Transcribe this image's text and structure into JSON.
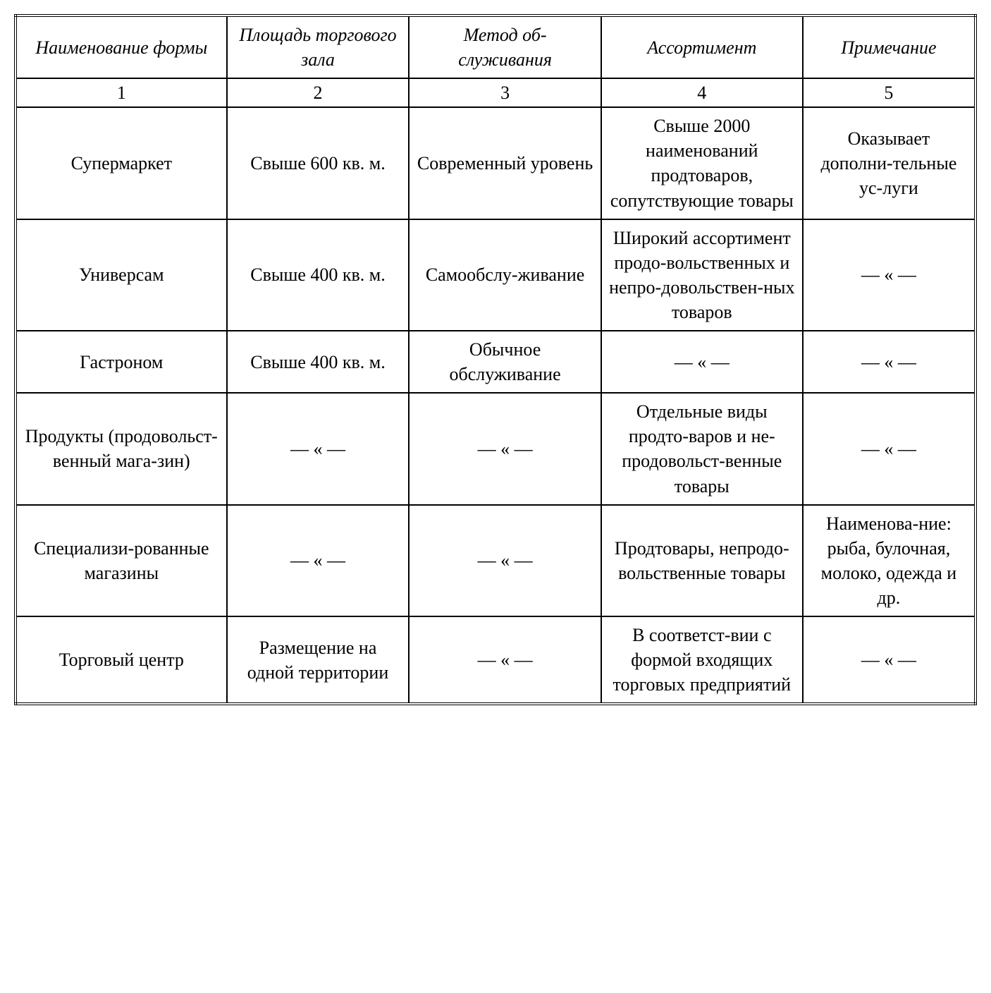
{
  "table": {
    "type": "table",
    "background_color": "#ffffff",
    "text_color": "#000000",
    "border_color": "#000000",
    "border_width": 2,
    "outer_border_style": "double",
    "font_family": "Times New Roman",
    "header_font_style": "italic",
    "cell_font_size_pt": 20,
    "columns": [
      {
        "label": "Наименование формы",
        "number": "1",
        "width_pct": 22
      },
      {
        "label": "Площадь торгового зала",
        "number": "2",
        "width_pct": 19
      },
      {
        "label": "Метод об-служивания",
        "number": "3",
        "width_pct": 20
      },
      {
        "label": "Ассортимент",
        "number": "4",
        "width_pct": 21
      },
      {
        "label": "Примечание",
        "number": "5",
        "width_pct": 18
      }
    ],
    "rows": [
      {
        "name": "Супермаркет",
        "area": "Свыше 600 кв. м.",
        "service": "Современный уровень",
        "assortment": "Свыше 2000 наименований продтоваров, сопутствующие товары",
        "note": "Оказывает дополни-тельные ус-луги"
      },
      {
        "name": "Универсам",
        "area": "Свыше 400 кв. м.",
        "service": "Самообслу-живание",
        "assortment": "Широкий ассортимент продо-вольственных и непро-довольствен-ных товаров",
        "note": "— « —"
      },
      {
        "name": "Гастроном",
        "area": "Свыше 400 кв. м.",
        "service": "Обычное обслуживание",
        "assortment": "— « —",
        "note": "— « —"
      },
      {
        "name": "Продукты (продовольст-венный мага-зин)",
        "area": "— « —",
        "service": "— « —",
        "assortment": "Отдельные виды продто-варов и не-продовольст-венные товары",
        "note": "— « —"
      },
      {
        "name": "Специализи-рованные магазины",
        "area": "— « —",
        "service": "— « —",
        "assortment": "Продтовары, непродо-вольственные товары",
        "note": "Наименова-ние: рыба, булочная, молоко, одежда и др."
      },
      {
        "name": "Торговый центр",
        "area": "Размещение на одной территории",
        "service": "— « —",
        "assortment": "В соответст-вии с формой входящих торговых предприятий",
        "note": "— « —"
      }
    ]
  }
}
